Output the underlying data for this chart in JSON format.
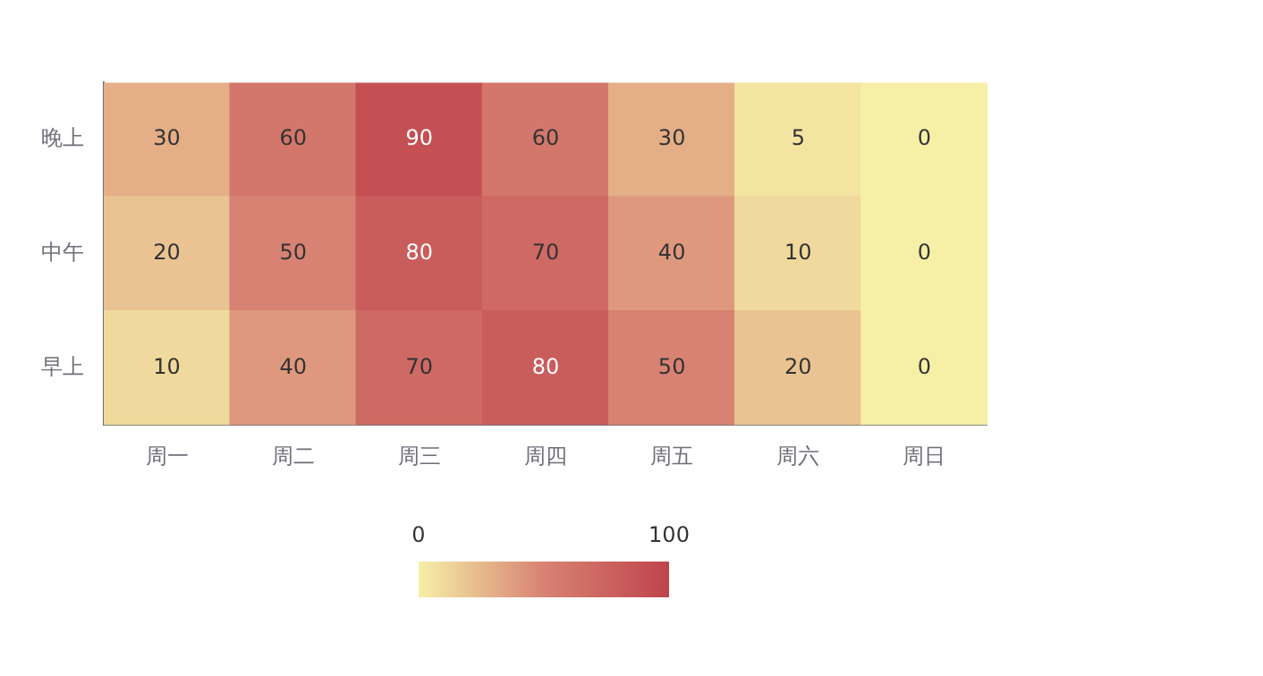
{
  "chart_data": {
    "type": "heatmap",
    "categories": [
      "周一",
      "周二",
      "周三",
      "周四",
      "周五",
      "周六",
      "周日"
    ],
    "y_categories": [
      "晚上",
      "中午",
      "早上"
    ],
    "cells": [
      [
        30,
        60,
        90,
        60,
        30,
        5,
        0
      ],
      [
        20,
        50,
        80,
        70,
        40,
        10,
        0
      ],
      [
        10,
        40,
        70,
        80,
        50,
        20,
        0
      ]
    ],
    "clim": [
      0,
      100
    ],
    "cticks": [
      0,
      100
    ],
    "data_labels": true,
    "grid": false,
    "legend": false
  }
}
